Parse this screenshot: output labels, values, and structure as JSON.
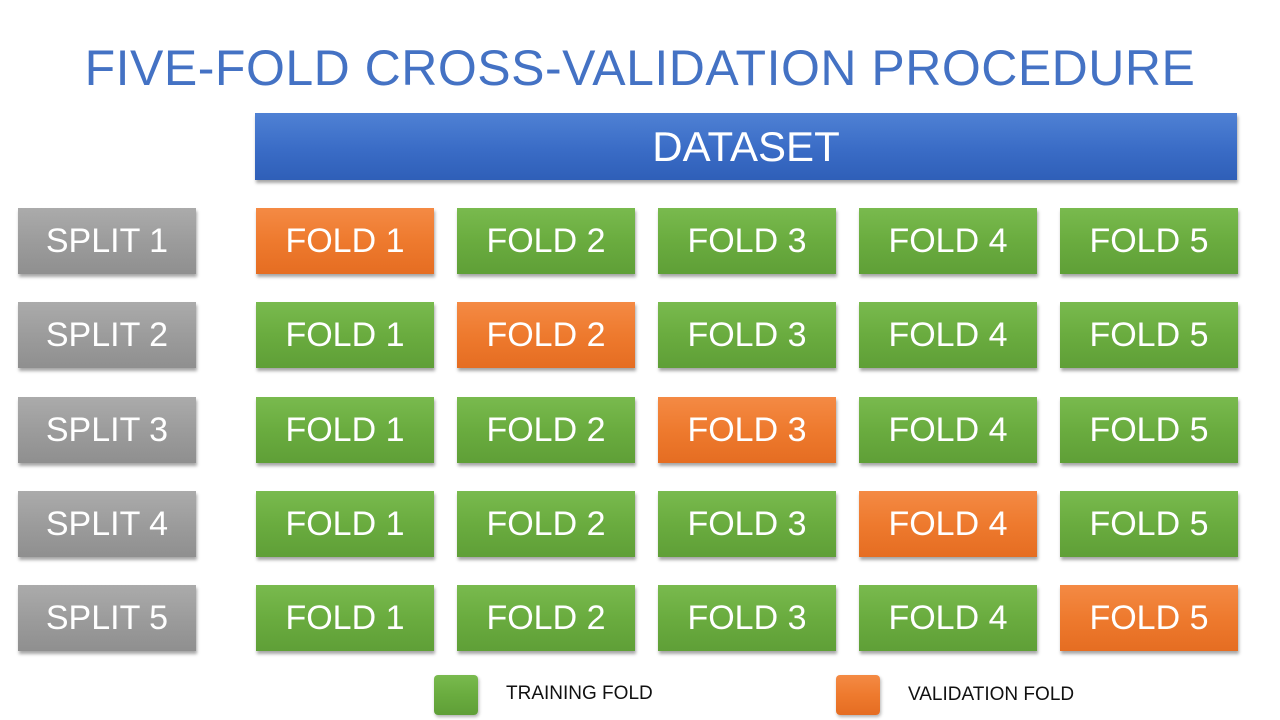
{
  "title": "FIVE-FOLD CROSS-VALIDATION PROCEDURE",
  "dataset_label": "DATASET",
  "colors": {
    "title": "#4472c4",
    "dataset": "#3a6cc6",
    "split": "#9c9c9c",
    "training": "#6aac3f",
    "validation": "#ee7a2e"
  },
  "splits": [
    {
      "label": "SPLIT 1",
      "folds": [
        {
          "label": "FOLD 1",
          "role": "validation"
        },
        {
          "label": "FOLD 2",
          "role": "training"
        },
        {
          "label": "FOLD 3",
          "role": "training"
        },
        {
          "label": "FOLD 4",
          "role": "training"
        },
        {
          "label": "FOLD 5",
          "role": "training"
        }
      ]
    },
    {
      "label": "SPLIT 2",
      "folds": [
        {
          "label": "FOLD 1",
          "role": "training"
        },
        {
          "label": "FOLD 2",
          "role": "validation"
        },
        {
          "label": "FOLD 3",
          "role": "training"
        },
        {
          "label": "FOLD 4",
          "role": "training"
        },
        {
          "label": "FOLD 5",
          "role": "training"
        }
      ]
    },
    {
      "label": "SPLIT 3",
      "folds": [
        {
          "label": "FOLD 1",
          "role": "training"
        },
        {
          "label": "FOLD 2",
          "role": "training"
        },
        {
          "label": "FOLD 3",
          "role": "validation"
        },
        {
          "label": "FOLD 4",
          "role": "training"
        },
        {
          "label": "FOLD 5",
          "role": "training"
        }
      ]
    },
    {
      "label": "SPLIT 4",
      "folds": [
        {
          "label": "FOLD 1",
          "role": "training"
        },
        {
          "label": "FOLD 2",
          "role": "training"
        },
        {
          "label": "FOLD 3",
          "role": "training"
        },
        {
          "label": "FOLD 4",
          "role": "validation"
        },
        {
          "label": "FOLD 5",
          "role": "training"
        }
      ]
    },
    {
      "label": "SPLIT 5",
      "folds": [
        {
          "label": "FOLD 1",
          "role": "training"
        },
        {
          "label": "FOLD 2",
          "role": "training"
        },
        {
          "label": "FOLD 3",
          "role": "training"
        },
        {
          "label": "FOLD 4",
          "role": "training"
        },
        {
          "label": "FOLD 5",
          "role": "validation"
        }
      ]
    }
  ],
  "legend": {
    "training_label": "TRAINING FOLD",
    "validation_label": "VALIDATION FOLD"
  }
}
